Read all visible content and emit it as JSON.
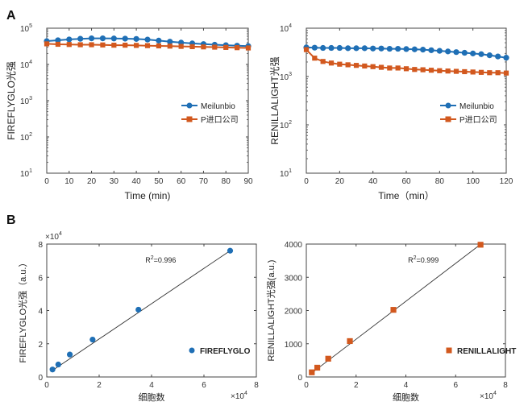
{
  "panel_labels": {
    "a": "A",
    "b": "B"
  },
  "chart_data": [
    {
      "id": "A-left",
      "type": "line",
      "scale_y": "log",
      "xlabel": "Time (min)",
      "ylabel": "FIREFLYGLO光强",
      "xlim": [
        0,
        90
      ],
      "ylim": [
        10,
        100000
      ],
      "x_ticks": [
        "0",
        "10",
        "20",
        "30",
        "40",
        "50",
        "60",
        "70",
        "80",
        "90"
      ],
      "y_tick_bases": [
        "10",
        "10",
        "10",
        "10",
        "10"
      ],
      "y_tick_exps": [
        "1",
        "2",
        "3",
        "4",
        "5"
      ],
      "series": [
        {
          "name": "Meilunbio",
          "color": "#1f6fb5",
          "marker": "circle",
          "x": [
            0,
            5,
            10,
            15,
            20,
            25,
            30,
            35,
            40,
            45,
            50,
            55,
            60,
            65,
            70,
            75,
            80,
            85,
            90
          ],
          "y": [
            44000,
            46500,
            49000,
            51000,
            52500,
            52500,
            52000,
            51500,
            50500,
            48500,
            45500,
            42500,
            40000,
            38000,
            36500,
            35000,
            34000,
            33000,
            32000
          ]
        },
        {
          "name": "P进口公司",
          "color": "#d2581e",
          "marker": "square",
          "x": [
            0,
            5,
            10,
            15,
            20,
            25,
            30,
            35,
            40,
            45,
            50,
            55,
            60,
            65,
            70,
            75,
            80,
            85,
            90
          ],
          "y": [
            37000,
            36000,
            35500,
            35000,
            35000,
            34500,
            34000,
            34000,
            33500,
            33000,
            32500,
            32000,
            31500,
            31000,
            30500,
            30000,
            29500,
            29000,
            28500
          ]
        }
      ],
      "legend": "center-right"
    },
    {
      "id": "A-right",
      "type": "line",
      "scale_y": "log",
      "xlabel": "Time（min）",
      "ylabel": "RENILLALIGHT光强",
      "xlim": [
        0,
        120
      ],
      "ylim": [
        10,
        10000
      ],
      "x_ticks": [
        "0",
        "20",
        "40",
        "60",
        "80",
        "100",
        "120"
      ],
      "y_tick_bases": [
        "10",
        "10",
        "10",
        "10"
      ],
      "y_tick_exps": [
        "1",
        "2",
        "3",
        "4"
      ],
      "series": [
        {
          "name": "Meilunbio",
          "color": "#1f6fb5",
          "marker": "circle",
          "x": [
            0,
            5,
            10,
            15,
            20,
            25,
            30,
            35,
            40,
            45,
            50,
            55,
            60,
            65,
            70,
            75,
            80,
            85,
            90,
            95,
            100,
            105,
            110,
            115,
            120
          ],
          "y": [
            4000,
            3950,
            3900,
            3900,
            3900,
            3850,
            3850,
            3850,
            3800,
            3800,
            3750,
            3750,
            3700,
            3650,
            3600,
            3500,
            3400,
            3300,
            3200,
            3100,
            3000,
            2900,
            2750,
            2600,
            2450
          ]
        },
        {
          "name": "P进口公司",
          "color": "#d2581e",
          "marker": "square",
          "x": [
            0,
            5,
            10,
            15,
            20,
            25,
            30,
            35,
            40,
            45,
            50,
            55,
            60,
            65,
            70,
            75,
            80,
            85,
            90,
            95,
            100,
            105,
            110,
            115,
            120
          ],
          "y": [
            3600,
            2400,
            2050,
            1900,
            1800,
            1750,
            1700,
            1650,
            1600,
            1550,
            1500,
            1500,
            1450,
            1400,
            1380,
            1350,
            1320,
            1300,
            1280,
            1260,
            1240,
            1220,
            1200,
            1200,
            1180
          ]
        }
      ],
      "legend": "center-right"
    },
    {
      "id": "B-left",
      "type": "scatter",
      "xlabel": "细胞数",
      "ylabel": "FIREFLYGLO光强（a.u.）",
      "xlim": [
        0,
        80000
      ],
      "ylim": [
        0,
        80000
      ],
      "x_ticks": [
        "0",
        "2",
        "4",
        "6",
        "8"
      ],
      "y_ticks": [
        "0",
        "2",
        "4",
        "6",
        "8"
      ],
      "x_multiplier_base": "×10",
      "x_multiplier_exp": "4",
      "y_multiplier_base": "×10",
      "y_multiplier_exp": "4",
      "annotation_base": "R",
      "annotation_exp": "2",
      "annotation_value": "=0.996",
      "series": [
        {
          "name": "FIREFLYGLO",
          "color": "#1f6fb5",
          "marker": "circle",
          "x": [
            2200,
            4400,
            8800,
            17500,
            35000,
            70000
          ],
          "y": [
            4500,
            7500,
            13500,
            22500,
            40500,
            76000
          ]
        }
      ],
      "fit_line": {
        "x": [
          1500,
          70000
        ],
        "y": [
          3200,
          76000
        ]
      },
      "legend": "center-right"
    },
    {
      "id": "B-right",
      "type": "scatter",
      "xlabel": "细胞数",
      "ylabel": "RENILLALIGHT光强(a.u.)",
      "xlim": [
        0,
        80000
      ],
      "ylim": [
        0,
        4000
      ],
      "x_ticks": [
        "0",
        "2",
        "4",
        "6",
        "8"
      ],
      "y_ticks": [
        "0",
        "1000",
        "2000",
        "3000",
        "4000"
      ],
      "x_multiplier_base": "×10",
      "x_multiplier_exp": "4",
      "annotation_base": "R",
      "annotation_exp": "2",
      "annotation_value": "=0.999",
      "series": [
        {
          "name": "RENILLALIGHT",
          "color": "#d2581e",
          "marker": "square",
          "x": [
            2200,
            4400,
            8800,
            17500,
            35000,
            70000
          ],
          "y": [
            140,
            280,
            550,
            1080,
            2020,
            3980
          ]
        }
      ],
      "fit_line": {
        "x": [
          1500,
          70000
        ],
        "y": [
          80,
          3990
        ]
      },
      "legend": "center-right"
    }
  ]
}
